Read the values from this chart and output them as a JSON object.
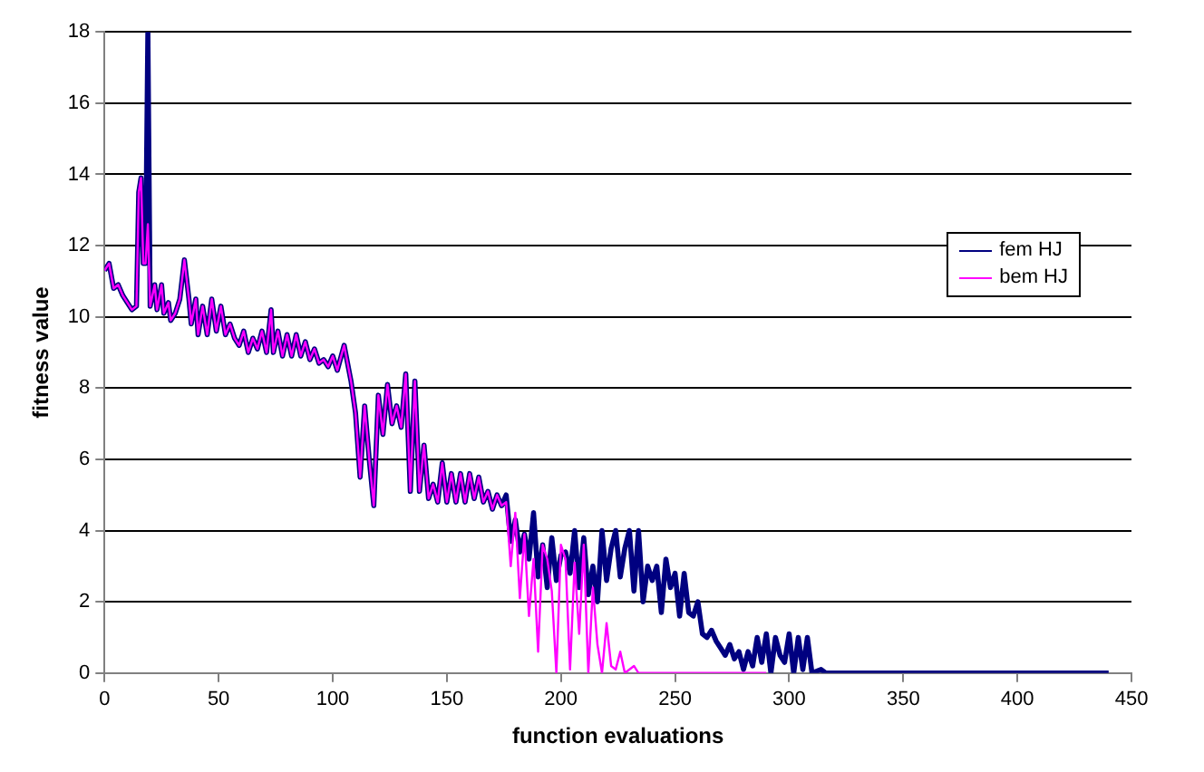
{
  "chart_data": {
    "type": "line",
    "xlabel": "function evaluations",
    "ylabel": "fitness value",
    "xlim": [
      0,
      450
    ],
    "xticks": [
      0,
      50,
      100,
      150,
      200,
      250,
      300,
      350,
      400,
      450
    ],
    "ylim": [
      0,
      18
    ],
    "yticks": [
      0,
      2,
      4,
      6,
      8,
      10,
      12,
      14,
      16,
      18
    ],
    "grid": "y",
    "legend": "right",
    "marker": "none",
    "line_style": "solid",
    "series": [
      {
        "name": "fem HJ",
        "color": "#000080",
        "x": [
          0,
          2,
          4,
          6,
          8,
          10,
          12,
          14,
          15,
          16,
          17,
          18,
          19,
          20,
          22,
          23,
          25,
          26,
          28,
          29,
          31,
          33,
          35,
          37,
          38,
          40,
          41,
          43,
          45,
          47,
          49,
          51,
          53,
          55,
          57,
          59,
          61,
          63,
          65,
          67,
          69,
          71,
          73,
          74,
          76,
          78,
          80,
          82,
          84,
          86,
          88,
          90,
          92,
          94,
          96,
          98,
          100,
          102,
          105,
          108,
          110,
          112,
          114,
          116,
          118,
          120,
          122,
          124,
          126,
          128,
          130,
          132,
          134,
          136,
          138,
          140,
          142,
          144,
          146,
          148,
          150,
          152,
          154,
          156,
          158,
          160,
          162,
          164,
          166,
          168,
          170,
          172,
          174,
          176,
          178,
          180,
          182,
          184,
          186,
          188,
          190,
          192,
          194,
          196,
          198,
          200,
          202,
          204,
          206,
          208,
          210,
          212,
          214,
          216,
          218,
          220,
          222,
          224,
          226,
          228,
          230,
          232,
          234,
          236,
          238,
          240,
          242,
          244,
          246,
          248,
          250,
          252,
          254,
          256,
          258,
          260,
          262,
          264,
          266,
          268,
          270,
          272,
          274,
          276,
          278,
          280,
          282,
          284,
          286,
          288,
          290,
          292,
          294,
          296,
          298,
          300,
          302,
          304,
          306,
          308,
          310,
          314,
          316,
          325,
          440
        ],
        "values": [
          11.3,
          11.5,
          10.8,
          10.9,
          10.6,
          10.4,
          10.2,
          10.3,
          13.5,
          13.9,
          11.5,
          11.5,
          18,
          10.3,
          10.9,
          10.2,
          10.9,
          10.1,
          10.4,
          9.9,
          10.1,
          10.5,
          11.6,
          10.5,
          9.8,
          10.5,
          9.5,
          10.3,
          9.5,
          10.5,
          9.6,
          10.3,
          9.5,
          9.8,
          9.4,
          9.2,
          9.6,
          9.0,
          9.4,
          9.1,
          9.6,
          9.0,
          10.2,
          9.0,
          9.6,
          8.9,
          9.5,
          8.9,
          9.5,
          8.9,
          9.3,
          8.8,
          9.1,
          8.7,
          8.8,
          8.6,
          8.9,
          8.5,
          9.2,
          8.2,
          7.3,
          5.5,
          7.5,
          6.0,
          4.7,
          7.8,
          6.7,
          8.1,
          7.0,
          7.5,
          6.9,
          8.4,
          5.1,
          8.2,
          5.1,
          6.4,
          4.9,
          5.3,
          4.8,
          5.9,
          4.8,
          5.6,
          4.8,
          5.6,
          4.8,
          5.6,
          4.9,
          5.5,
          4.8,
          5.1,
          4.6,
          5.0,
          4.7,
          5.0,
          3.7,
          4.3,
          3.4,
          3.9,
          3.2,
          4.5,
          2.7,
          3.6,
          2.4,
          3.8,
          2.6,
          3.3,
          3.4,
          2.8,
          4.0,
          2.4,
          3.8,
          2.2,
          3.0,
          2.0,
          4.0,
          2.6,
          3.5,
          4.0,
          2.7,
          3.5,
          4.0,
          2.3,
          4.0,
          2.0,
          3.0,
          2.6,
          3.0,
          1.7,
          3.2,
          2.4,
          2.8,
          1.6,
          2.8,
          1.7,
          1.6,
          2.0,
          1.1,
          1.0,
          1.2,
          0.9,
          0.7,
          0.5,
          0.8,
          0.4,
          0.6,
          0.1,
          0.6,
          0.2,
          1.0,
          0.3,
          1.1,
          0.0,
          1.0,
          0.5,
          0.3,
          1.1,
          0.0,
          1.0,
          0.1,
          1.0,
          0.0,
          0.1,
          0.0,
          0.0,
          0.0
        ]
      },
      {
        "name": "bem HJ",
        "color": "#ff00ff",
        "x": [
          0,
          2,
          4,
          6,
          8,
          10,
          12,
          14,
          15,
          16,
          17,
          18,
          19,
          20,
          22,
          23,
          25,
          26,
          28,
          29,
          31,
          33,
          35,
          37,
          38,
          40,
          41,
          43,
          45,
          47,
          49,
          51,
          53,
          55,
          57,
          59,
          61,
          63,
          65,
          67,
          69,
          71,
          73,
          74,
          76,
          78,
          80,
          82,
          84,
          86,
          88,
          90,
          92,
          94,
          96,
          98,
          100,
          102,
          105,
          108,
          110,
          112,
          114,
          116,
          118,
          120,
          122,
          124,
          126,
          128,
          130,
          132,
          134,
          136,
          138,
          140,
          142,
          144,
          146,
          148,
          150,
          152,
          154,
          156,
          158,
          160,
          162,
          164,
          166,
          168,
          170,
          172,
          174,
          176,
          178,
          180,
          182,
          184,
          186,
          188,
          190,
          192,
          194,
          196,
          198,
          200,
          202,
          204,
          206,
          208,
          210,
          212,
          214,
          216,
          218,
          220,
          222,
          224,
          226,
          228,
          232,
          234,
          290
        ],
        "values": [
          11.3,
          11.5,
          10.8,
          10.9,
          10.6,
          10.4,
          10.2,
          10.3,
          13.5,
          13.9,
          11.5,
          11.5,
          12.6,
          10.3,
          10.9,
          10.2,
          10.9,
          10.1,
          10.4,
          9.9,
          10.1,
          10.5,
          11.6,
          10.5,
          9.8,
          10.5,
          9.5,
          10.3,
          9.5,
          10.5,
          9.6,
          10.3,
          9.5,
          9.8,
          9.4,
          9.2,
          9.6,
          9.0,
          9.4,
          9.1,
          9.6,
          9.0,
          10.2,
          9.0,
          9.6,
          8.9,
          9.5,
          8.9,
          9.5,
          8.9,
          9.3,
          8.8,
          9.1,
          8.7,
          8.8,
          8.6,
          8.9,
          8.5,
          9.2,
          8.2,
          7.3,
          5.5,
          7.5,
          6.0,
          4.7,
          7.8,
          6.7,
          8.1,
          7.0,
          7.5,
          6.9,
          8.4,
          5.1,
          8.2,
          5.1,
          6.4,
          4.9,
          5.3,
          4.8,
          5.9,
          4.8,
          5.6,
          4.8,
          5.6,
          4.8,
          5.6,
          4.9,
          5.5,
          4.8,
          5.1,
          4.6,
          5.0,
          4.7,
          4.8,
          3.0,
          4.5,
          2.1,
          3.9,
          1.6,
          3.2,
          0.6,
          3.6,
          3.2,
          2.3,
          0.0,
          3.6,
          3.2,
          0.1,
          3.1,
          1.1,
          3.6,
          0.0,
          2.4,
          0.8,
          0.0,
          1.4,
          0.2,
          0.1,
          0.6,
          0.0,
          0.2,
          0.0,
          0.0
        ]
      }
    ]
  }
}
